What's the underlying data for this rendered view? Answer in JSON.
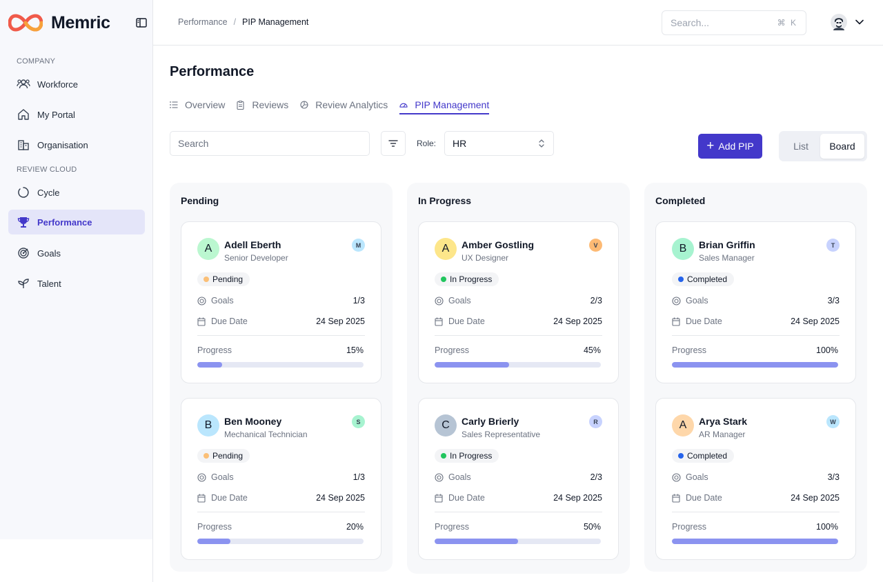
{
  "app": {
    "name": "Memric"
  },
  "sidebar": {
    "sections": [
      {
        "label": "COMPANY"
      },
      {
        "label": "REVIEW CLOUD"
      }
    ],
    "items": [
      {
        "label": "Workforce",
        "icon": "users-icon"
      },
      {
        "label": "My Portal",
        "icon": "home-icon"
      },
      {
        "label": "Organisation",
        "icon": "building-icon"
      },
      {
        "label": "Cycle",
        "icon": "cycle-icon"
      },
      {
        "label": "Performance",
        "icon": "trophy-icon",
        "active": true
      },
      {
        "label": "Goals",
        "icon": "target-icon"
      },
      {
        "label": "Talent",
        "icon": "sprout-icon"
      }
    ]
  },
  "header": {
    "breadcrumb": [
      "Performance",
      "PIP Management"
    ],
    "search_placeholder": "Search...",
    "search_shortcut": "⌘ K"
  },
  "page": {
    "title": "Performance",
    "tabs": [
      {
        "label": "Overview",
        "icon": "list-icon"
      },
      {
        "label": "Reviews",
        "icon": "clipboard-icon"
      },
      {
        "label": "Review Analytics",
        "icon": "pie-chart-icon"
      },
      {
        "label": "PIP Management",
        "icon": "gauge-icon",
        "active": true
      }
    ]
  },
  "toolbar": {
    "search_placeholder": "Search",
    "role_label": "Role:",
    "role_value": "HR",
    "add_label": "Add PIP",
    "view_options": [
      "List",
      "Board"
    ],
    "view_selected": "Board"
  },
  "board": {
    "field_labels": {
      "goals": "Goals",
      "due": "Due Date",
      "progress": "Progress"
    },
    "columns": [
      {
        "title": "Pending",
        "status_color": "#fbbf77",
        "cards": [
          {
            "initial": "A",
            "name": "Adell Eberth",
            "role": "Senior Developer",
            "avatar_color": "#bbf7d0",
            "mini": "M",
            "mini_color": "#bae6fd",
            "status": "Pending",
            "goals": "1/3",
            "due": "24 Sep 2025",
            "progress_text": "15%",
            "progress": 0.15
          },
          {
            "initial": "B",
            "name": "Ben Mooney",
            "role": "Mechanical Technician",
            "avatar_color": "#bae6fd",
            "mini": "S",
            "mini_color": "#a7f3d0",
            "status": "Pending",
            "goals": "1/3",
            "due": "24 Sep 2025",
            "progress_text": "20%",
            "progress": 0.2
          }
        ]
      },
      {
        "title": "In Progress",
        "status_color": "#22c55e",
        "cards": [
          {
            "initial": "A",
            "name": "Amber Gostling",
            "role": "UX Designer",
            "avatar_color": "#fde68a",
            "mini": "V",
            "mini_color": "#fdba74",
            "status": "In Progress",
            "goals": "2/3",
            "due": "24 Sep 2025",
            "progress_text": "45%",
            "progress": 0.45
          },
          {
            "initial": "C",
            "name": "Carly Brierly",
            "role": "Sales Representative",
            "avatar_color": "#b6c4d4",
            "mini": "R",
            "mini_color": "#c7d2fe",
            "status": "In Progress",
            "goals": "2/3",
            "due": "24 Sep 2025",
            "progress_text": "50%",
            "progress": 0.5
          }
        ]
      },
      {
        "title": "Completed",
        "status_color": "#2563eb",
        "cards": [
          {
            "initial": "B",
            "name": "Brian Griffin",
            "role": "Sales Manager",
            "avatar_color": "#a7f3d0",
            "mini": "T",
            "mini_color": "#c7d2fe",
            "status": "Completed",
            "goals": "3/3",
            "due": "24 Sep 2025",
            "progress_text": "100%",
            "progress": 1.0
          },
          {
            "initial": "A",
            "name": "Arya Stark",
            "role": "AR Manager",
            "avatar_color": "#fed7aa",
            "mini": "W",
            "mini_color": "#bae6fd",
            "status": "Completed",
            "goals": "3/3",
            "due": "24 Sep 2025",
            "progress_text": "100%",
            "progress": 1.0
          }
        ]
      }
    ]
  },
  "colors": {
    "accent": "#4338ca",
    "progress_fill": "#8b93f0",
    "progress_track": "#e5e8f4"
  }
}
